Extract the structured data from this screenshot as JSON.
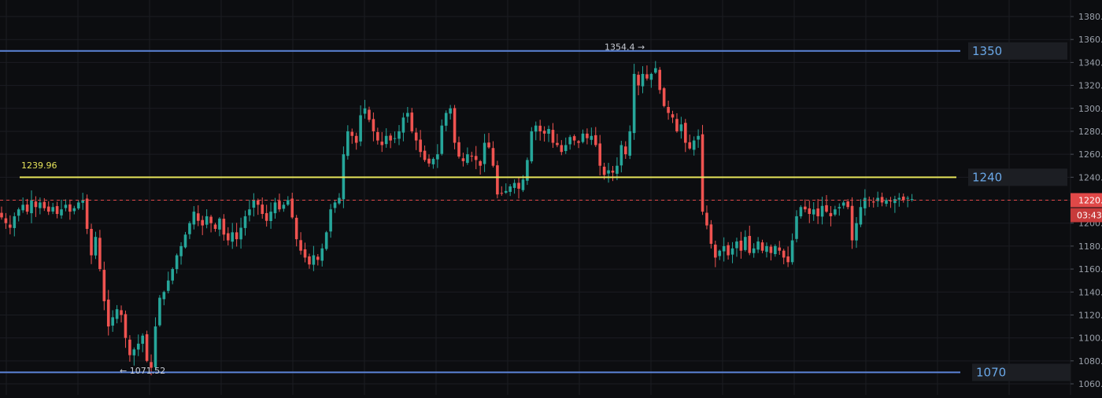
{
  "chart_data": {
    "type": "candlestick",
    "ylim": [
      1055,
      1390
    ],
    "y_ticks": [
      1060,
      1080,
      1100,
      1120,
      1140,
      1160,
      1180,
      1200,
      1220,
      1240,
      1260,
      1280,
      1300,
      1320,
      1340,
      1360,
      1380
    ],
    "grid": true,
    "colors": {
      "up": "#26a69a",
      "down": "#ef5350",
      "background": "#0c0d10",
      "grid": "#1b1d22",
      "level_blue": "#5b84d8",
      "level_yellow": "#e6e35a",
      "current_price": "#e04848",
      "axis_text": "#9aa0aa"
    },
    "horizontal_levels": [
      {
        "value": 1350,
        "label": "1350",
        "color": "#5b84d8"
      },
      {
        "value": 1240,
        "label": "1240",
        "color": "#e6e35a",
        "line_value": 1239.96
      },
      {
        "value": 1070,
        "label": "1070",
        "color": "#5b84d8"
      }
    ],
    "annotations": {
      "high": {
        "text": "1354.4 →",
        "value": 1354.4
      },
      "low": {
        "text": "← 1071.52",
        "value": 1071.52
      },
      "level": {
        "text": "1239.96",
        "value": 1239.96
      }
    },
    "current_price": {
      "label": "1220.",
      "countdown": "03:43",
      "value": 1220
    },
    "closes": [
      1205,
      1200,
      1196,
      1206,
      1212,
      1216,
      1210,
      1220,
      1214,
      1218,
      1213,
      1210,
      1214,
      1208,
      1212,
      1216,
      1210,
      1213,
      1218,
      1220,
      1195,
      1172,
      1188,
      1160,
      1132,
      1110,
      1118,
      1125,
      1120,
      1100,
      1085,
      1090,
      1095,
      1102,
      1080,
      1074,
      1110,
      1135,
      1140,
      1150,
      1160,
      1172,
      1180,
      1190,
      1200,
      1210,
      1202,
      1198,
      1206,
      1200,
      1195,
      1204,
      1190,
      1185,
      1192,
      1186,
      1196,
      1206,
      1212,
      1220,
      1216,
      1208,
      1202,
      1210,
      1218,
      1212,
      1216,
      1220,
      1205,
      1186,
      1176,
      1170,
      1164,
      1172,
      1168,
      1178,
      1192,
      1212,
      1218,
      1222,
      1260,
      1280,
      1276,
      1270,
      1294,
      1300,
      1290,
      1280,
      1272,
      1268,
      1276,
      1272,
      1274,
      1280,
      1292,
      1296,
      1280,
      1272,
      1262,
      1255,
      1252,
      1256,
      1260,
      1285,
      1296,
      1300,
      1270,
      1258,
      1254,
      1260,
      1258,
      1255,
      1250,
      1270,
      1266,
      1250,
      1225,
      1226,
      1228,
      1232,
      1235,
      1230,
      1238,
      1255,
      1280,
      1285,
      1280,
      1278,
      1282,
      1270,
      1268,
      1262,
      1268,
      1275,
      1272,
      1270,
      1278,
      1274,
      1276,
      1268,
      1250,
      1242,
      1246,
      1244,
      1250,
      1268,
      1260,
      1280,
      1330,
      1320,
      1330,
      1326,
      1330,
      1335,
      1316,
      1302,
      1296,
      1292,
      1280,
      1286,
      1270,
      1265,
      1272,
      1276,
      1210,
      1198,
      1182,
      1170,
      1176,
      1180,
      1172,
      1178,
      1184,
      1176,
      1188,
      1174,
      1178,
      1184,
      1176,
      1180,
      1174,
      1180,
      1176,
      1170,
      1166,
      1185,
      1206,
      1214,
      1212,
      1208,
      1212,
      1206,
      1215,
      1210,
      1206,
      1212,
      1214,
      1218,
      1214,
      1185,
      1200,
      1214,
      1222,
      1220,
      1218,
      1222,
      1218,
      1220,
      1219,
      1221,
      1222,
      1220,
      1222,
      1221
    ]
  }
}
